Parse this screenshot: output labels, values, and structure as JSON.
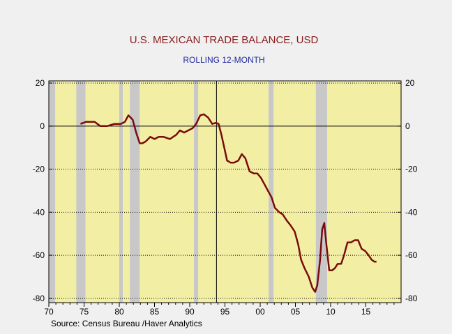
{
  "chart_data": {
    "type": "line",
    "title": "U.S. MEXICAN TRADE BALANCE, USD",
    "subtitle": "ROLLING 12-MONTH",
    "source": "Source:   Census Bureau /Haver Analytics",
    "xlim": [
      1970,
      2020
    ],
    "ylim": [
      -82,
      21
    ],
    "yticks": [
      20,
      0,
      -20,
      -40,
      -60,
      -80
    ],
    "yticklabels": [
      "20",
      "0",
      "-20",
      "-40",
      "-60",
      "-80"
    ],
    "xticks": [
      1970,
      1975,
      1980,
      1985,
      1990,
      1995,
      2000,
      2005,
      2010,
      2015
    ],
    "xticklabels": [
      "70",
      "75",
      "80",
      "85",
      "90",
      "95",
      "00",
      "05",
      "10",
      "15"
    ],
    "grid": "horizontal dotted",
    "zero_line": true,
    "vertical_marker_x": 1993.8,
    "recessions": [
      [
        1970.0,
        1970.9
      ],
      [
        1973.9,
        1975.2
      ],
      [
        1980.0,
        1980.5
      ],
      [
        1981.5,
        1982.9
      ],
      [
        1990.6,
        1991.2
      ],
      [
        2001.2,
        2001.9
      ],
      [
        2007.9,
        2009.5
      ]
    ],
    "colors": {
      "plot_bg": "#f2efa5",
      "recession": "#c8c8c8",
      "line": "#7a0b0b"
    },
    "series": [
      {
        "x": [
          1974.5,
          1975.3,
          1976.5,
          1977.3,
          1978.3,
          1979.3,
          1980.2,
          1980.8,
          1981.3,
          1981.9,
          1982.4,
          1982.9,
          1983.3,
          1983.8,
          1984.4,
          1985.0,
          1985.6,
          1986.3,
          1987.2,
          1988.1,
          1988.6,
          1989.2,
          1989.8,
          1990.4,
          1990.9,
          1991.5,
          1992.0,
          1992.6,
          1993.2,
          1993.7,
          1994.1,
          1994.5,
          1994.9,
          1995.3,
          1995.8,
          1996.3,
          1996.9,
          1997.4,
          1997.9,
          1998.5,
          1999.1,
          1999.6,
          2000.1,
          2000.6,
          2001.1,
          2001.6,
          2002.1,
          2002.7,
          2003.2,
          2003.8,
          2004.3,
          2004.9,
          2005.4,
          2005.8,
          2006.3,
          2006.9,
          2007.4,
          2007.8,
          2008.1,
          2008.5,
          2008.8,
          2009.1,
          2009.4,
          2009.8,
          2010.2,
          2010.6,
          2011.0,
          2011.5,
          2011.9,
          2012.4,
          2012.9,
          2013.4,
          2013.9,
          2014.4,
          2014.9,
          2015.4,
          2015.8,
          2016.2,
          2016.5
        ],
        "y": [
          1,
          2,
          2,
          0,
          0,
          1,
          1,
          2,
          5,
          3,
          -3,
          -8,
          -8,
          -7,
          -5,
          -6,
          -5,
          -5,
          -6,
          -4,
          -2,
          -3,
          -2,
          -1,
          1,
          5,
          5.5,
          4,
          1,
          1.5,
          1,
          -4,
          -10,
          -16,
          -17,
          -17,
          -16,
          -13,
          -15,
          -21,
          -22,
          -22,
          -24,
          -27,
          -30,
          -33,
          -38,
          -40,
          -41,
          -44,
          -46,
          -49,
          -55,
          -62,
          -66,
          -70,
          -75,
          -77,
          -74,
          -62,
          -48,
          -45,
          -55,
          -67,
          -67,
          -66,
          -64,
          -64,
          -60,
          -54,
          -54,
          -53,
          -53,
          -57,
          -58,
          -60,
          -62,
          -63,
          -63
        ]
      }
    ]
  }
}
